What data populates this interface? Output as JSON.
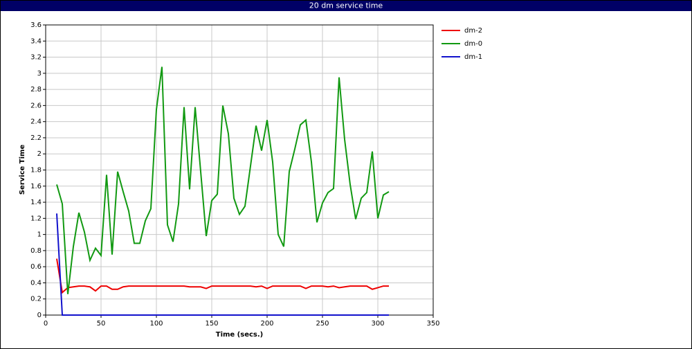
{
  "chart_data": {
    "type": "line",
    "title": "20 dm service time",
    "x_label": "Time (secs.)",
    "y_label": "Service Time",
    "x": [
      10,
      15,
      20,
      25,
      30,
      35,
      40,
      45,
      50,
      55,
      60,
      65,
      70,
      75,
      80,
      85,
      90,
      95,
      100,
      105,
      110,
      115,
      120,
      125,
      130,
      135,
      140,
      145,
      150,
      155,
      160,
      165,
      170,
      175,
      180,
      185,
      190,
      195,
      200,
      205,
      210,
      215,
      220,
      225,
      230,
      235,
      240,
      245,
      250,
      255,
      260,
      265,
      270,
      275,
      280,
      285,
      290,
      295,
      300,
      305,
      310
    ],
    "series": [
      {
        "name": "dm-2",
        "color": "#ee0000",
        "values": [
          0.7,
          0.28,
          0.34,
          0.35,
          0.36,
          0.36,
          0.35,
          0.3,
          0.36,
          0.36,
          0.32,
          0.32,
          0.35,
          0.36,
          0.36,
          0.36,
          0.36,
          0.36,
          0.36,
          0.36,
          0.36,
          0.36,
          0.36,
          0.36,
          0.35,
          0.35,
          0.35,
          0.33,
          0.36,
          0.36,
          0.36,
          0.36,
          0.36,
          0.36,
          0.36,
          0.36,
          0.35,
          0.36,
          0.33,
          0.36,
          0.36,
          0.36,
          0.36,
          0.36,
          0.36,
          0.33,
          0.36,
          0.36,
          0.36,
          0.35,
          0.36,
          0.34,
          0.35,
          0.36,
          0.36,
          0.36,
          0.36,
          0.32,
          0.34,
          0.36,
          0.36
        ]
      },
      {
        "name": "dm-0",
        "color": "#119911",
        "values": [
          1.62,
          1.38,
          0.26,
          0.85,
          1.27,
          1.03,
          0.68,
          0.83,
          0.74,
          1.74,
          0.75,
          1.78,
          1.53,
          1.29,
          0.89,
          0.89,
          1.17,
          1.32,
          2.55,
          3.08,
          1.12,
          0.91,
          1.38,
          2.58,
          1.56,
          2.58,
          1.78,
          0.98,
          1.42,
          1.5,
          2.6,
          2.25,
          1.45,
          1.25,
          1.35,
          1.85,
          2.35,
          2.04,
          2.42,
          1.9,
          1.0,
          0.85,
          1.78,
          2.06,
          2.36,
          2.42,
          1.9,
          1.15,
          1.39,
          1.52,
          1.57,
          2.95,
          2.18,
          1.62,
          1.19,
          1.45,
          1.52,
          2.03,
          1.2,
          1.49,
          1.53
        ]
      },
      {
        "name": "dm-1",
        "color": "#1111cc",
        "values": [
          1.26,
          0,
          0,
          0,
          0,
          0,
          0,
          0,
          0,
          0,
          0,
          0,
          0,
          0,
          0,
          0,
          0,
          0,
          0,
          0,
          0,
          0,
          0,
          0,
          0,
          0,
          0,
          0,
          0,
          0,
          0,
          0,
          0,
          0,
          0,
          0,
          0,
          0,
          0,
          0,
          0,
          0,
          0,
          0,
          0,
          0,
          0,
          0,
          0,
          0,
          0,
          0,
          0,
          0,
          0,
          0,
          0,
          0,
          0,
          0,
          0
        ]
      }
    ],
    "xlim": [
      0,
      350
    ],
    "xticks": [
      0,
      50,
      100,
      150,
      200,
      250,
      300,
      350
    ],
    "ylim": [
      0,
      3.6
    ],
    "yticks": [
      0,
      0.2,
      0.4,
      0.6,
      0.8,
      1,
      1.2,
      1.4,
      1.6,
      1.8,
      2,
      2.2,
      2.4,
      2.6,
      2.8,
      3,
      3.2,
      3.4,
      3.6
    ],
    "grid": true,
    "legend": "right"
  }
}
